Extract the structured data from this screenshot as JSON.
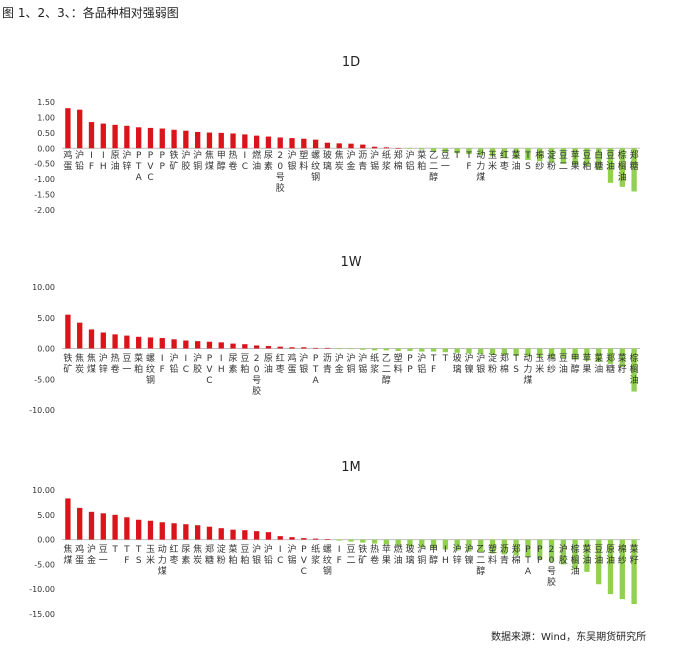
{
  "figure_caption": "图 1、2、3、：各品种相对强弱图",
  "source_note": "数据来源：Wind，东吴期货研究所",
  "colors": {
    "positive": "#d9141b",
    "negative": "#92d050"
  },
  "chart_data": [
    {
      "type": "bar",
      "title": "1D",
      "ylim": [
        -2.0,
        1.5
      ],
      "yticks": [
        "1.50",
        "1.00",
        "0.50",
        "0.00",
        "-0.50",
        "-1.00",
        "-1.50",
        "-2.00"
      ],
      "categories": [
        "鸡蛋",
        "沪铅",
        "IF",
        "IH",
        "原油",
        "沪锌",
        "PTA",
        "PVC",
        "PP",
        "铁矿",
        "沪胶",
        "沪铜",
        "焦煤",
        "甲醇",
        "热卷",
        "IC",
        "燃油",
        "尿素",
        "20号胶",
        "沪银",
        "塑料",
        "螺纹钢",
        "玻璃",
        "焦炭",
        "沪金",
        "沥青",
        "沪锡",
        "纸浆",
        "郑棉",
        "沪铝",
        "菜粕",
        "乙二醇",
        "豆一",
        "T",
        "TF",
        "动力煤",
        "玉米",
        "红枣",
        "菜油",
        "TS",
        "棉纱",
        "淀粉",
        "豆二",
        "苹果",
        "豆粕",
        "白糖",
        "豆油",
        "棕榈油",
        "郑糖"
      ],
      "values": [
        1.3,
        1.25,
        0.85,
        0.8,
        0.76,
        0.73,
        0.68,
        0.66,
        0.64,
        0.6,
        0.57,
        0.53,
        0.51,
        0.5,
        0.48,
        0.45,
        0.41,
        0.38,
        0.35,
        0.33,
        0.31,
        0.28,
        0.18,
        0.16,
        0.15,
        0.12,
        0.05,
        0.03,
        0.01,
        -0.02,
        -0.04,
        -0.1,
        -0.13,
        -0.16,
        -0.19,
        -0.22,
        -0.26,
        -0.3,
        -0.34,
        -0.38,
        -0.42,
        -0.46,
        -0.5,
        -0.54,
        -0.58,
        -0.7,
        -1.12,
        -1.25,
        -1.4
      ]
    },
    {
      "type": "bar",
      "title": "1W",
      "ylim": [
        -10.0,
        10.0
      ],
      "yticks": [
        "10.00",
        "5.00",
        "0.00",
        "-5.00",
        "-10.00"
      ],
      "categories": [
        "铁矿",
        "焦炭",
        "焦煤",
        "沪锌",
        "热卷",
        "豆一",
        "菜粕",
        "螺纹钢",
        "IF",
        "沪铅",
        "IC",
        "沪胶",
        "PVC",
        "IH",
        "尿素",
        "豆粕",
        "20号胶",
        "原油",
        "红枣",
        "鸡蛋",
        "沪银",
        "PTA",
        "沥青",
        "沪金",
        "沪铜",
        "沪锡",
        "纸浆",
        "乙二醇",
        "塑料",
        "PP",
        "沪铝",
        "TF",
        "T",
        "玻璃",
        "沪镍",
        "沪银",
        "淀粉",
        "郑棉",
        "TS",
        "动力煤",
        "玉米",
        "棉纱",
        "豆油",
        "甲醇",
        "苹果",
        "菜油",
        "郑糖",
        "菜籽",
        "棕榈油"
      ],
      "values": [
        5.5,
        4.2,
        3.1,
        2.6,
        2.3,
        2.1,
        1.9,
        1.8,
        1.7,
        1.5,
        1.3,
        1.2,
        1.1,
        1.0,
        0.8,
        0.7,
        0.5,
        0.4,
        0.3,
        0.2,
        0.2,
        0.1,
        0.1,
        -0.1,
        -0.1,
        -0.2,
        -0.3,
        -0.3,
        -0.4,
        -0.4,
        -0.5,
        -0.5,
        -0.6,
        -0.7,
        -0.8,
        -0.9,
        -1.0,
        -1.1,
        -1.2,
        -1.3,
        -1.4,
        -1.5,
        -1.6,
        -1.8,
        -2.0,
        -2.2,
        -2.5,
        -3.0,
        -7.0
      ]
    },
    {
      "type": "bar",
      "title": "1M",
      "ylim": [
        -15.0,
        10.0
      ],
      "yticks": [
        "10.00",
        "5.00",
        "0.00",
        "-5.00",
        "-10.00",
        "-15.00"
      ],
      "categories": [
        "焦煤",
        "鸡蛋",
        "沪金",
        "豆一",
        "T",
        "TF",
        "TS",
        "玉米",
        "动力煤",
        "红枣",
        "尿素",
        "焦炭",
        "郑糖",
        "淀粉",
        "菜粕",
        "豆粕",
        "沪银",
        "沪铅",
        "IC",
        "沪锡",
        "PVC",
        "纸浆",
        "螺纹钢",
        "IF",
        "豆二",
        "铁矿",
        "热卷",
        "苹果",
        "燃油",
        "玻璃",
        "沪铜",
        "甲醇",
        "IH",
        "沪锌",
        "沪镍",
        "乙二醇",
        "塑料",
        "沥青",
        "郑棉",
        "PTA",
        "PP",
        "20号胶",
        "沪胶",
        "棕榈油",
        "菜油",
        "豆油",
        "原油",
        "棉纱",
        "菜籽"
      ],
      "values": [
        8.3,
        6.4,
        5.6,
        5.3,
        5.0,
        4.5,
        4.0,
        3.8,
        3.5,
        3.3,
        3.1,
        2.9,
        2.6,
        2.3,
        2.0,
        1.9,
        1.7,
        1.5,
        0.7,
        0.5,
        0.3,
        0.2,
        0.1,
        -0.2,
        -0.4,
        -0.6,
        -0.8,
        -1.0,
        -1.2,
        -1.4,
        -1.6,
        -1.8,
        -2.0,
        -2.2,
        -2.4,
        -2.6,
        -2.8,
        -3.0,
        -3.2,
        -3.4,
        -4.0,
        -4.5,
        -5.0,
        -6.0,
        -6.5,
        -9.0,
        -11.0,
        -12.0,
        -13.0
      ]
    }
  ]
}
